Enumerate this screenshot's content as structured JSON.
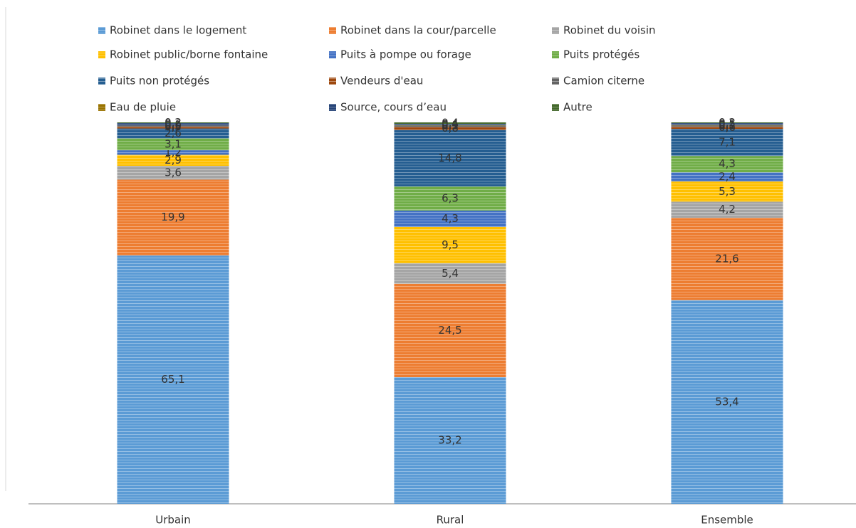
{
  "chart_data": {
    "type": "stacked_bar",
    "categories": [
      "Urbain",
      "Rural",
      "Ensemble"
    ],
    "ylim": [
      0,
      100
    ],
    "series": [
      {
        "name": "Robinet dans le logement",
        "color": "#5b9bd5",
        "values": [
          65.1,
          33.2,
          53.4
        ],
        "value_labels": [
          "65,1",
          "33,2",
          "53,4"
        ]
      },
      {
        "name": "Robinet dans la cour/parcelle",
        "color": "#ed7d31",
        "values": [
          19.9,
          24.5,
          21.6
        ],
        "value_labels": [
          "19,9",
          "24,5",
          "21,6"
        ]
      },
      {
        "name": "Robinet du voisin",
        "color": "#a5a5a5",
        "values": [
          3.6,
          5.4,
          4.2
        ],
        "value_labels": [
          "3,6",
          "5,4",
          "4,2"
        ]
      },
      {
        "name": "Robinet public/borne fontaine",
        "color": "#ffc000",
        "values": [
          2.9,
          9.5,
          5.3
        ],
        "value_labels": [
          "2,9",
          "9,5",
          "5,3"
        ]
      },
      {
        "name": "Puits à pompe ou forage",
        "color": "#4472c4",
        "values": [
          1.2,
          4.3,
          2.4
        ],
        "value_labels": [
          "1,2",
          "4,3",
          "2,4"
        ]
      },
      {
        "name": "Puits protégés",
        "color": "#70ad47",
        "values": [
          3.1,
          6.3,
          4.3
        ],
        "value_labels": [
          "3,1",
          "6,3",
          "4,3"
        ]
      },
      {
        "name": "Puits non protégés",
        "color": "#255e91",
        "values": [
          2.6,
          14.8,
          7.1
        ],
        "value_labels": [
          "2,6",
          "14,8",
          "7,1"
        ]
      },
      {
        "name": "Vendeurs d'eau",
        "color": "#9e480e",
        "values": [
          0.5,
          0.8,
          0.6
        ],
        "value_labels": [
          "0,5",
          "0,8",
          "0,6"
        ]
      },
      {
        "name": "Camion citerne",
        "color": "#636363",
        "values": [
          0.3,
          0.3,
          0.3
        ],
        "value_labels": [
          "0,3",
          "0,3",
          "0,3"
        ]
      },
      {
        "name": "Eau de pluie",
        "color": "#997300",
        "values": [
          0.0,
          0.1,
          0.1
        ],
        "value_labels": [
          "0,0",
          "0,1",
          "0,1"
        ]
      },
      {
        "name": "Source, cours d’eau",
        "color": "#264478",
        "values": [
          0.6,
          0.4,
          0.5
        ],
        "value_labels": [
          "0,6",
          "0,4",
          "0,5"
        ]
      },
      {
        "name": "Autre",
        "color": "#43682b",
        "values": [
          0.2,
          0.4,
          0.2
        ],
        "value_labels": [
          "0,2",
          "0,4",
          "0,2"
        ]
      }
    ]
  }
}
